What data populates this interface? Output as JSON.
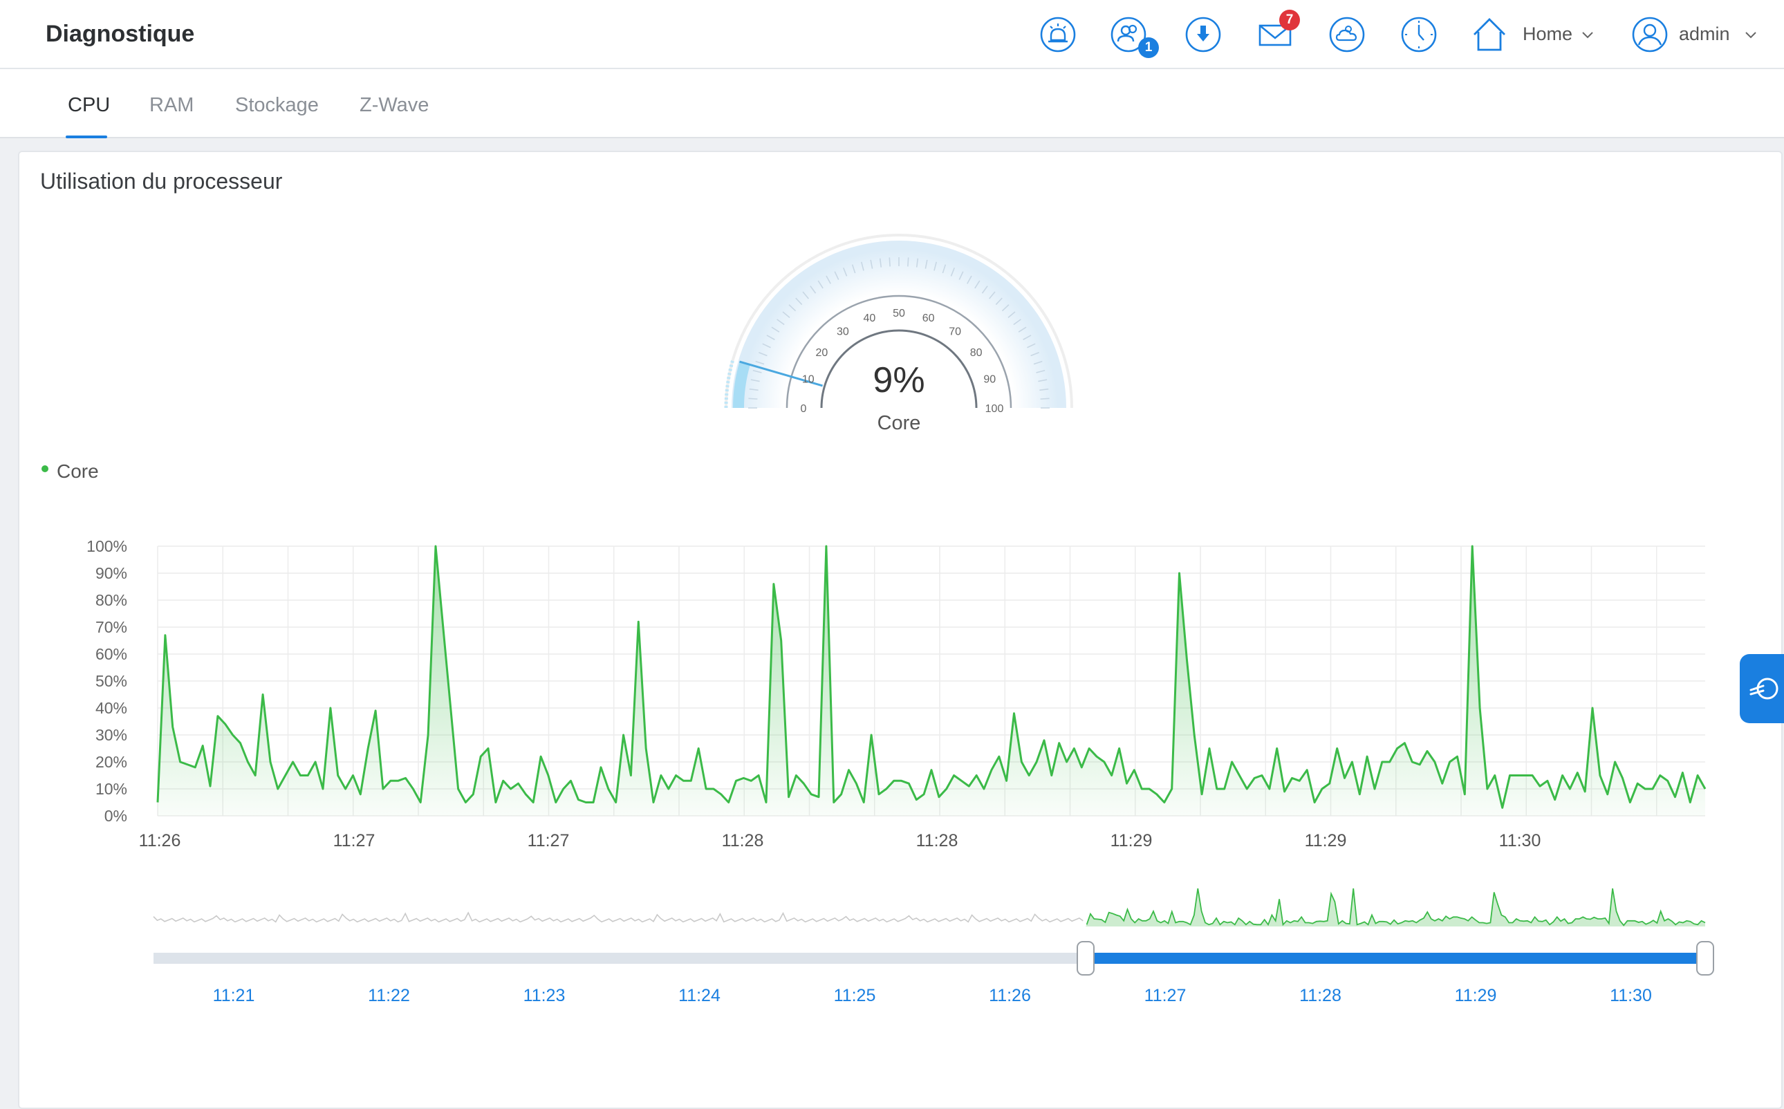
{
  "header": {
    "title": "Diagnostique",
    "icons": [
      "alarm-icon",
      "users-icon",
      "download-icon",
      "mail-icon",
      "weather-icon",
      "clock-icon",
      "home-icon",
      "user-avatar-icon"
    ],
    "users_badge": "1",
    "mail_badge": "7",
    "home_label": "Home",
    "user_label": "admin"
  },
  "tabs": [
    {
      "label": "CPU",
      "active": true
    },
    {
      "label": "RAM",
      "active": false
    },
    {
      "label": "Stockage",
      "active": false
    },
    {
      "label": "Z-Wave",
      "active": false
    }
  ],
  "card": {
    "title": "Utilisation du processeur"
  },
  "gauge": {
    "value_text": "9%",
    "value": 9,
    "label": "Core",
    "ticks": [
      "0",
      "10",
      "20",
      "30",
      "40",
      "50",
      "60",
      "70",
      "80",
      "90",
      "100"
    ]
  },
  "colors": {
    "accent": "#1a7fe0",
    "series": "#3bba48",
    "badge_red": "#e0353b"
  },
  "chart_data": {
    "type": "area",
    "legend": [
      "Core"
    ],
    "legend_position": "top-left",
    "grid": true,
    "ylim": [
      0,
      100
    ],
    "y_ticks": [
      "0%",
      "10%",
      "20%",
      "30%",
      "40%",
      "50%",
      "60%",
      "70%",
      "80%",
      "90%",
      "100%"
    ],
    "x_ticks": [
      "11:26",
      "11:27",
      "11:27",
      "11:28",
      "11:28",
      "11:29",
      "11:29",
      "11:30"
    ],
    "series": [
      {
        "name": "Core",
        "values": [
          5,
          67,
          33,
          20,
          19,
          18,
          26,
          11,
          37,
          34,
          30,
          27,
          20,
          15,
          45,
          20,
          10,
          15,
          20,
          15,
          15,
          20,
          10,
          40,
          15,
          10,
          15,
          8,
          25,
          39,
          10,
          13,
          13,
          14,
          10,
          5,
          30,
          100,
          70,
          40,
          10,
          5,
          8,
          22,
          25,
          5,
          13,
          10,
          12,
          8,
          5,
          22,
          15,
          5,
          10,
          13,
          6,
          5,
          5,
          18,
          10,
          5,
          30,
          15,
          72,
          25,
          5,
          15,
          10,
          15,
          13,
          13,
          25,
          10,
          10,
          8,
          5,
          13,
          14,
          13,
          15,
          5,
          86,
          65,
          7,
          15,
          12,
          8,
          7,
          100,
          5,
          8,
          17,
          12,
          5,
          30,
          8,
          10,
          13,
          13,
          12,
          6,
          8,
          17,
          7,
          10,
          15,
          13,
          11,
          15,
          10,
          17,
          22,
          13,
          38,
          20,
          15,
          20,
          28,
          15,
          27,
          20,
          25,
          18,
          25,
          22,
          20,
          15,
          25,
          12,
          17,
          10,
          10,
          8,
          5,
          10,
          90,
          58,
          30,
          8,
          25,
          10,
          10,
          20,
          15,
          10,
          14,
          15,
          10,
          25,
          9,
          14,
          13,
          17,
          5,
          10,
          12,
          25,
          14,
          20,
          8,
          22,
          10,
          20,
          20,
          25,
          27,
          20,
          19,
          24,
          20,
          12,
          20,
          22,
          8,
          100,
          40,
          10,
          15,
          3,
          15,
          15,
          15,
          15,
          11,
          13,
          6,
          15,
          10,
          16,
          9,
          40,
          15,
          8,
          20,
          14,
          5,
          12,
          10,
          10,
          15,
          13,
          7,
          16,
          5,
          15,
          10
        ]
      }
    ],
    "navigator": {
      "x_ticks": [
        "11:21",
        "11:22",
        "11:23",
        "11:24",
        "11:25",
        "11:26",
        "11:27",
        "11:28",
        "11:29",
        "11:30"
      ],
      "selected_range": [
        "11:26",
        "11:30"
      ]
    }
  }
}
